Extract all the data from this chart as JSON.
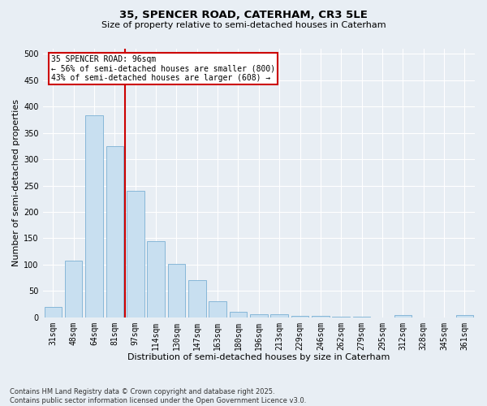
{
  "title1": "35, SPENCER ROAD, CATERHAM, CR3 5LE",
  "title2": "Size of property relative to semi-detached houses in Caterham",
  "xlabel": "Distribution of semi-detached houses by size in Caterham",
  "ylabel": "Number of semi-detached properties",
  "categories": [
    "31sqm",
    "48sqm",
    "64sqm",
    "81sqm",
    "97sqm",
    "114sqm",
    "130sqm",
    "147sqm",
    "163sqm",
    "180sqm",
    "196sqm",
    "213sqm",
    "229sqm",
    "246sqm",
    "262sqm",
    "279sqm",
    "295sqm",
    "312sqm",
    "328sqm",
    "345sqm",
    "361sqm"
  ],
  "values": [
    20,
    107,
    383,
    325,
    240,
    144,
    102,
    70,
    30,
    10,
    6,
    6,
    2,
    2,
    1,
    1,
    0,
    4,
    0,
    0,
    4
  ],
  "bar_color": "#c8dff0",
  "bar_edge_color": "#7ab0d4",
  "vline_index": 4,
  "vline_color": "#cc0000",
  "annotation_title": "35 SPENCER ROAD: 96sqm",
  "annotation_line1": "← 56% of semi-detached houses are smaller (800)",
  "annotation_line2": "43% of semi-detached houses are larger (608) →",
  "annotation_box_edgecolor": "#cc0000",
  "annotation_fill": "#ffffff",
  "footer1": "Contains HM Land Registry data © Crown copyright and database right 2025.",
  "footer2": "Contains public sector information licensed under the Open Government Licence v3.0.",
  "bg_color": "#e8eef4",
  "plot_bg_color": "#e8eef4",
  "grid_color": "#ffffff",
  "ylim": [
    0,
    510
  ],
  "yticks": [
    0,
    50,
    100,
    150,
    200,
    250,
    300,
    350,
    400,
    450,
    500
  ],
  "title1_fontsize": 9.5,
  "title2_fontsize": 8,
  "xlabel_fontsize": 8,
  "ylabel_fontsize": 8,
  "tick_fontsize": 7,
  "footer_fontsize": 6,
  "annot_fontsize": 7
}
